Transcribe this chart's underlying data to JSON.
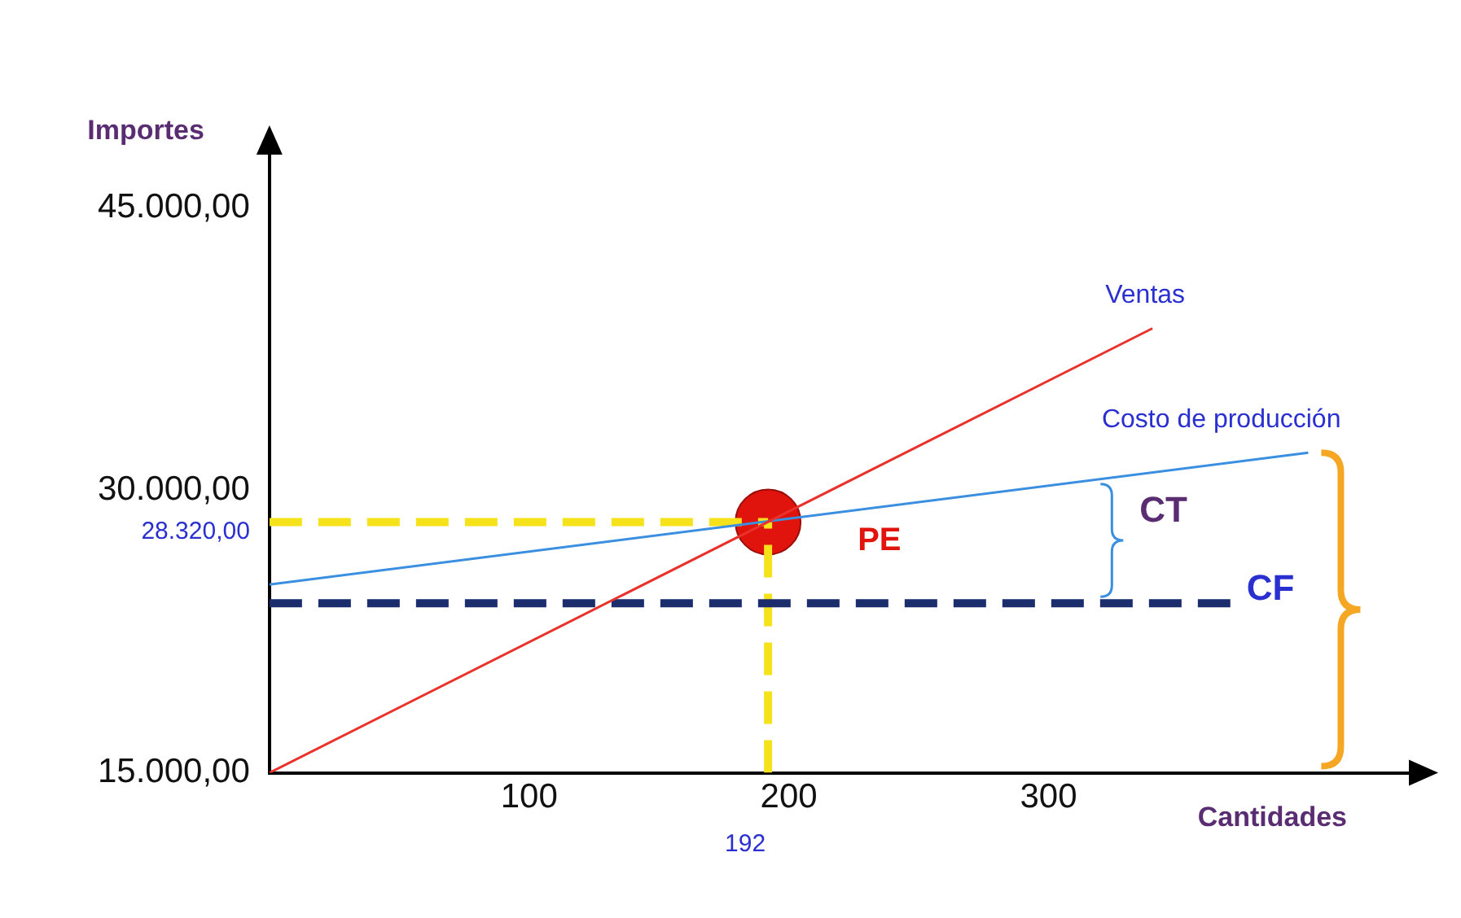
{
  "chart_data": {
    "type": "line",
    "xlabel": "Cantidades",
    "ylabel": "Importes",
    "xlim": [
      0,
      440
    ],
    "ylim": [
      15000,
      48000
    ],
    "xticks": [
      100,
      200,
      300
    ],
    "yticks": [
      {
        "value": 15000,
        "label": "15.000,00"
      },
      {
        "value": 30000,
        "label": "30.000,00"
      },
      {
        "value": 45000,
        "label": "45.000,00"
      }
    ],
    "series": [
      {
        "name": "Ventas",
        "type": "line",
        "color": "#e8322b",
        "x": [
          0,
          340
        ],
        "values": [
          15000,
          38600
        ]
      },
      {
        "name": "Costo de producción",
        "type": "line",
        "color": "#3b8fe0",
        "x": [
          0,
          400
        ],
        "values": [
          25000,
          32000
        ]
      },
      {
        "name": "CF",
        "type": "line",
        "color": "#1c2d6e",
        "line_style": "dashed",
        "x": [
          0,
          370
        ],
        "values": [
          24000,
          24000
        ]
      },
      {
        "type": "line",
        "color": "#f5e21b",
        "line_style": "dashed",
        "x": [
          0,
          192
        ],
        "values": [
          28320,
          28320
        ]
      },
      {
        "type": "line",
        "color": "#f5e21b",
        "line_style": "dashed",
        "x": [
          192,
          192
        ],
        "values": [
          15000,
          28320
        ]
      },
      {
        "name": "PE",
        "type": "scatter",
        "marker": "circle",
        "color": "#e0140c",
        "x": [
          192
        ],
        "values": [
          28320
        ]
      }
    ],
    "annotations": [
      {
        "text": "28.320,00",
        "x": 0,
        "y": 28320
      },
      {
        "text": "192",
        "x": 192,
        "y": 15000
      },
      {
        "text": "CT",
        "x": 320,
        "y": 30600
      }
    ],
    "grid": false,
    "legend": false
  }
}
